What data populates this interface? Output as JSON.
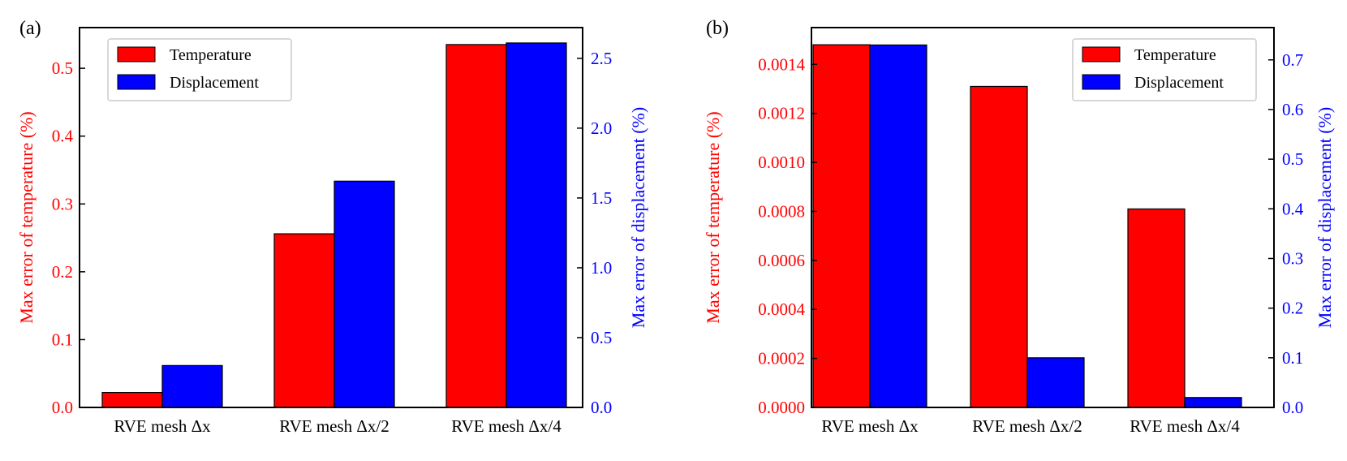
{
  "chart_data": [
    {
      "type": "bar",
      "panel_label": "(a)",
      "categories": [
        "RVE mesh Δx",
        "RVE mesh Δx/2",
        "RVE mesh Δx/4"
      ],
      "series": [
        {
          "name": "Temperature",
          "axis": "left",
          "color": "#ff0000",
          "values": [
            0.022,
            0.256,
            0.535
          ]
        },
        {
          "name": "Displacement",
          "axis": "right",
          "color": "#0000ff",
          "values": [
            0.3,
            1.62,
            2.61
          ]
        }
      ],
      "ylabel_left": "Max error of temperature (%)",
      "ylabel_right": "Max error of displacement (%)",
      "ylim_left": [
        0,
        0.56
      ],
      "ylim_right": [
        0,
        2.72
      ],
      "yticks_left": [
        "0.0",
        "0.1",
        "0.2",
        "0.3",
        "0.4",
        "0.5"
      ],
      "yticks_right": [
        "0.0",
        "0.5",
        "1.0",
        "1.5",
        "2.0",
        "2.5"
      ],
      "ytick_values_left": [
        0,
        0.1,
        0.2,
        0.3,
        0.4,
        0.5
      ],
      "ytick_values_right": [
        0,
        0.5,
        1.0,
        1.5,
        2.0,
        2.5
      ],
      "left_axis_color": "#ff0000",
      "right_axis_color": "#0000ff",
      "legend_position": "top-left"
    },
    {
      "type": "bar",
      "panel_label": "(b)",
      "categories": [
        "RVE mesh Δx",
        "RVE mesh Δx/2",
        "RVE mesh Δx/4"
      ],
      "series": [
        {
          "name": "Temperature",
          "axis": "left",
          "color": "#ff0000",
          "values": [
            0.00148,
            0.00131,
            0.00081
          ]
        },
        {
          "name": "Displacement",
          "axis": "right",
          "color": "#0000ff",
          "values": [
            0.73,
            0.1,
            0.02
          ]
        }
      ],
      "ylabel_left": "Max error of temperature (%)",
      "ylabel_right": "Max error of displacement (%)",
      "ylim_left": [
        0,
        0.00155
      ],
      "ylim_right": [
        0,
        0.765
      ],
      "yticks_left": [
        "0.0000",
        "0.0002",
        "0.0004",
        "0.0006",
        "0.0008",
        "0.0010",
        "0.0012",
        "0.0014"
      ],
      "yticks_right": [
        "0.0",
        "0.1",
        "0.2",
        "0.3",
        "0.4",
        "0.5",
        "0.6",
        "0.7"
      ],
      "ytick_values_left": [
        0,
        0.0002,
        0.0004,
        0.0006,
        0.0008,
        0.001,
        0.0012,
        0.0014
      ],
      "ytick_values_right": [
        0,
        0.1,
        0.2,
        0.3,
        0.4,
        0.5,
        0.6,
        0.7
      ],
      "left_axis_color": "#ff0000",
      "right_axis_color": "#0000ff",
      "legend_position": "top-right"
    }
  ]
}
